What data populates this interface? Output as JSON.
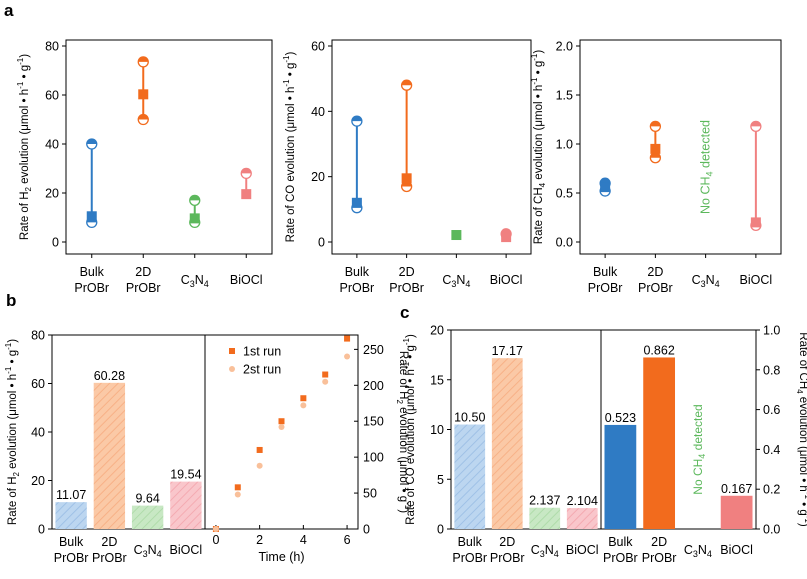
{
  "panels": {
    "a": "a",
    "b": "b",
    "c": "c"
  },
  "colors": {
    "bulk": "#2f7bc4",
    "twoD": "#f26b1d",
    "c3n4": "#5cb85c",
    "biocl": "#f08080",
    "bulk_light": "#a9cbec",
    "twoD_light": "#f9b98f",
    "c3n4_light": "#b7e0b3",
    "biocl_light": "#f7b7bd",
    "run1": "#f26b1d",
    "run2": "#f9c09a",
    "nodetect": "#5cb85c"
  },
  "chart_data": [
    {
      "id": "a1",
      "type": "scatter",
      "ylabel_parts": [
        "Rate of H",
        "2",
        " evolution (μmol • h",
        "-1",
        " • g",
        "-1",
        ")"
      ],
      "ylim": [
        0,
        80
      ],
      "yticks": [
        0,
        20,
        40,
        60,
        80
      ],
      "categories": [
        [
          "Bulk",
          "PrOBr"
        ],
        [
          "2D",
          "PrOBr"
        ],
        [
          "C3N4"
        ],
        [
          "BiOCl"
        ]
      ],
      "points": [
        {
          "cat": 0,
          "mean": 10.5,
          "min": 8,
          "max": 40,
          "color": "bulk"
        },
        {
          "cat": 1,
          "mean": 60.28,
          "min": 50,
          "max": 73.5,
          "color": "twoD"
        },
        {
          "cat": 2,
          "mean": 9.64,
          "min": 8,
          "max": 17,
          "color": "c3n4"
        },
        {
          "cat": 3,
          "mean": 19.54,
          "min": null,
          "max": 28,
          "color": "biocl"
        }
      ]
    },
    {
      "id": "a2",
      "type": "scatter",
      "ylabel_parts": [
        "Rate of CO evolution (μmol • h",
        "-1",
        " • g",
        "-1",
        ")"
      ],
      "ylim": [
        0,
        60
      ],
      "yticks": [
        0,
        20,
        40,
        60
      ],
      "categories": [
        [
          "Bulk",
          "PrOBr"
        ],
        [
          "2D",
          "PrOBr"
        ],
        [
          "C3N4"
        ],
        [
          "BiOCl"
        ]
      ],
      "points": [
        {
          "cat": 0,
          "mean": 12,
          "min": 10.5,
          "max": 37,
          "color": "bulk"
        },
        {
          "cat": 1,
          "mean": 19.5,
          "min": 17,
          "max": 48,
          "color": "twoD"
        },
        {
          "cat": 2,
          "mean": 2.137,
          "min": null,
          "max": null,
          "color": "c3n4"
        },
        {
          "cat": 3,
          "mean": 1.5,
          "min": null,
          "max": 2.5,
          "color": "biocl"
        }
      ]
    },
    {
      "id": "a3",
      "type": "scatter",
      "ylabel_parts": [
        "Rate of CH",
        "4",
        " evolution (μmol • h",
        "-1",
        " • g",
        "-1",
        ")"
      ],
      "ylim": [
        0,
        2.0
      ],
      "yticks": [
        0,
        0.5,
        1.0,
        1.5,
        2.0
      ],
      "categories": [
        [
          "Bulk",
          "PrOBr"
        ],
        [
          "2D",
          "PrOBr"
        ],
        [
          "C3N4"
        ],
        [
          "BiOCl"
        ]
      ],
      "points": [
        {
          "cat": 0,
          "mean": 0.56,
          "min": 0.52,
          "max": 0.6,
          "color": "bulk"
        },
        {
          "cat": 1,
          "mean": 0.95,
          "min": 0.86,
          "max": 1.18,
          "color": "twoD"
        },
        {
          "cat": 3,
          "mean": 0.2,
          "min": 0.17,
          "max": 1.18,
          "color": "biocl"
        }
      ],
      "annotation": "No CH4 detected"
    },
    {
      "id": "b1",
      "type": "bar",
      "ylabel_parts": [
        "Rate of H",
        "2",
        " evolution (μmol • h",
        "-1",
        " • g",
        "-1",
        ")"
      ],
      "ylim": [
        0,
        80
      ],
      "yticks": [
        0,
        20,
        40,
        60,
        80
      ],
      "categories": [
        [
          "Bulk",
          "PrOBr"
        ],
        [
          "2D",
          "PrOBr"
        ],
        [
          "C3N4"
        ],
        [
          "BiOCl"
        ]
      ],
      "values": [
        11.07,
        60.28,
        9.64,
        19.54
      ],
      "labels": [
        "11.07",
        "60.28",
        "9.64",
        "19.54"
      ]
    },
    {
      "id": "b2",
      "type": "scatter",
      "xlabel": "Time (h)",
      "ylabel_parts": [
        "Rate of H",
        "2",
        " evolution (μmol • g",
        "-1",
        ")"
      ],
      "xlim": [
        -0.5,
        6.5
      ],
      "xticks": [
        0,
        2,
        4,
        6
      ],
      "ylim": [
        0,
        270
      ],
      "yticks": [
        0,
        50,
        100,
        150,
        200,
        250
      ],
      "series": [
        {
          "name": "1st run",
          "x": [
            0,
            1,
            2,
            3,
            4,
            5,
            6
          ],
          "y": [
            0,
            58,
            110,
            150,
            182,
            215,
            265
          ]
        },
        {
          "name": "2st run",
          "x": [
            0,
            1,
            2,
            3,
            4,
            5,
            6
          ],
          "y": [
            0,
            48,
            88,
            142,
            172,
            205,
            240
          ]
        }
      ],
      "legend_position": "top-left"
    },
    {
      "id": "c1",
      "type": "bar",
      "ylabel_parts": [
        "Rate of CO evolution (μmol • h",
        "-1",
        " • g",
        "-1",
        ")"
      ],
      "ylim": [
        0,
        20
      ],
      "yticks": [
        0,
        5,
        10,
        15,
        20
      ],
      "categories": [
        [
          "Bulk",
          "PrOBr"
        ],
        [
          "2D",
          "PrOBr"
        ],
        [
          "C3N4"
        ],
        [
          "BiOCl"
        ]
      ],
      "values": [
        10.5,
        17.17,
        2.137,
        2.104
      ],
      "labels": [
        "10.50",
        "17.17",
        "2.137",
        "2.104"
      ]
    },
    {
      "id": "c2",
      "type": "bar",
      "ylabel_parts": [
        "Rate of CH",
        "4",
        " evolution (μmol • h",
        "-1",
        " • g",
        "-1",
        ")"
      ],
      "ylim": [
        0,
        1.0
      ],
      "yticks": [
        0,
        0.2,
        0.4,
        0.6,
        0.8,
        1.0
      ],
      "categories": [
        [
          "Bulk",
          "PrOBr"
        ],
        [
          "2D",
          "PrOBr"
        ],
        [
          "C3N4"
        ],
        [
          "BiOCl"
        ]
      ],
      "values": [
        0.523,
        0.862,
        null,
        0.167
      ],
      "labels": [
        "0.523",
        "0.862",
        "",
        "0.167"
      ],
      "annotation": "No CH4 detected"
    }
  ]
}
